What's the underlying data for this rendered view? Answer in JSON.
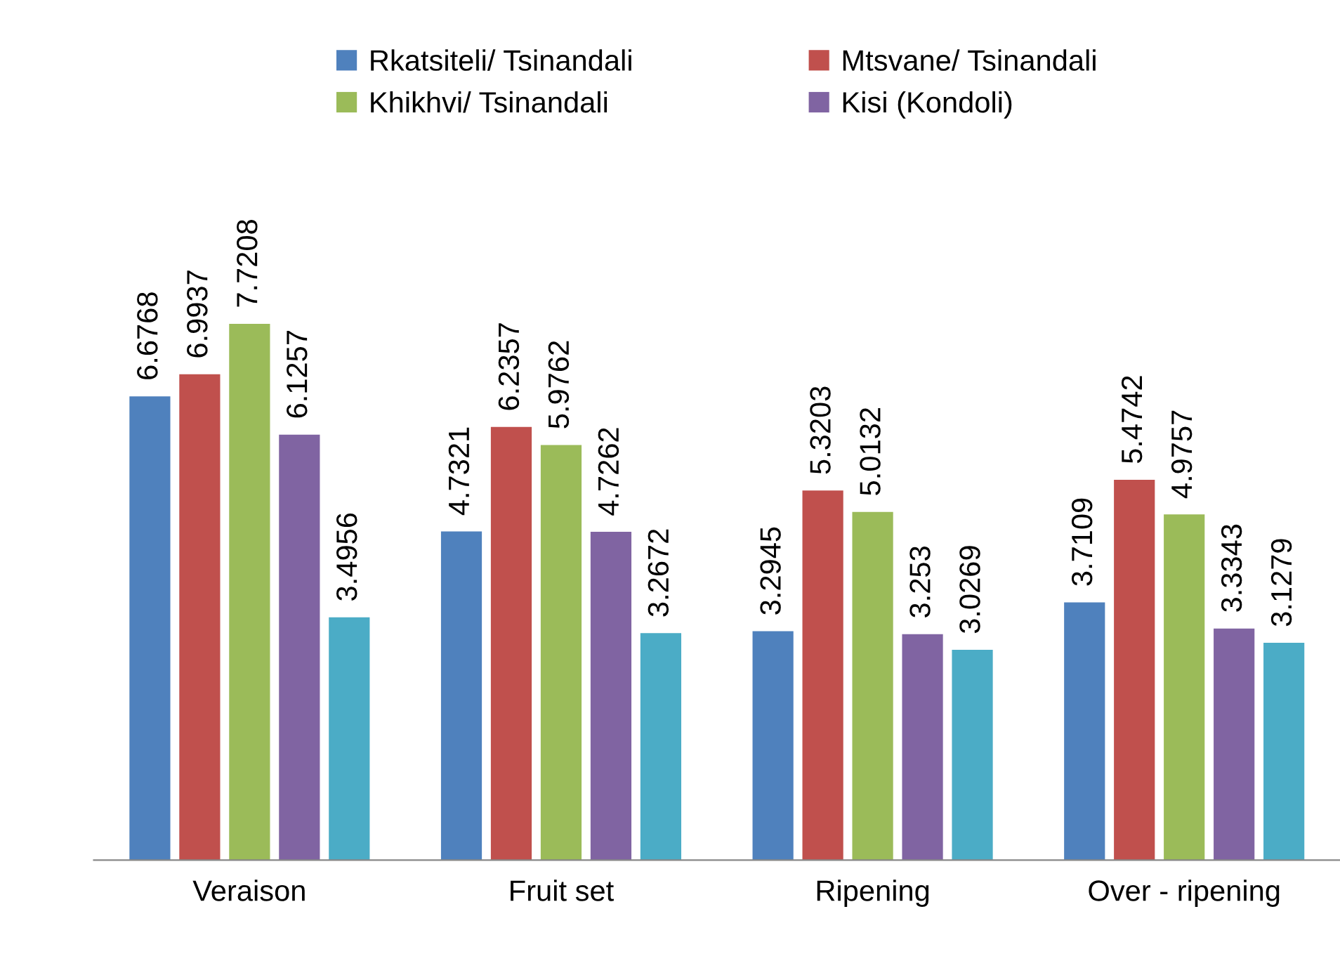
{
  "chart_data": {
    "type": "bar",
    "categories": [
      "Veraison",
      "Fruit set",
      "Ripening",
      "Over - ripening"
    ],
    "series": [
      {
        "name": "Rkatsiteli/ Tsinandali",
        "color": "#4f81bd",
        "values": [
          6.6768,
          4.7321,
          3.2945,
          3.7109
        ]
      },
      {
        "name": "Mtsvane/ Tsinandali",
        "color": "#c0504d",
        "values": [
          6.9937,
          6.2357,
          5.3203,
          5.4742
        ]
      },
      {
        "name": "Khikhvi/ Tsinandali",
        "color": "#9bbb59",
        "values": [
          7.7208,
          5.9762,
          5.0132,
          4.9757
        ]
      },
      {
        "name": "Kisi (Kondoli)",
        "color": "#8064a2",
        "values": [
          6.1257,
          4.7262,
          3.253,
          3.3343
        ]
      },
      {
        "color": "#4bacc6",
        "values": [
          3.4956,
          3.2672,
          3.0269,
          3.1279
        ]
      }
    ],
    "data_labels": true,
    "legend": "top"
  }
}
